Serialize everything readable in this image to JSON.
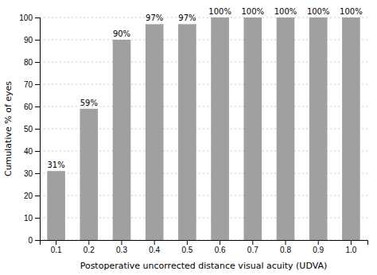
{
  "chart_data": {
    "type": "bar",
    "categories": [
      "0.1",
      "0.2",
      "0.3",
      "0.4",
      "0.5",
      "0.6",
      "0.7",
      "0.8",
      "0.9",
      "1.0"
    ],
    "values": [
      31,
      59,
      90,
      97,
      97,
      100,
      100,
      100,
      100,
      100
    ],
    "value_labels": [
      "31%",
      "59%",
      "90%",
      "97%",
      "97%",
      "100%",
      "100%",
      "100%",
      "100%",
      "100%"
    ],
    "data_labels": true,
    "color": "#a0a0a0",
    "xlabel": "Postoperative uncorrected distance visual acuity (UDVA)",
    "ylabel": "Cumulative % of eyes",
    "ylim": [
      0,
      100
    ],
    "yticks": [
      0,
      10,
      20,
      30,
      40,
      50,
      60,
      70,
      80,
      90,
      100
    ],
    "grid": true
  }
}
